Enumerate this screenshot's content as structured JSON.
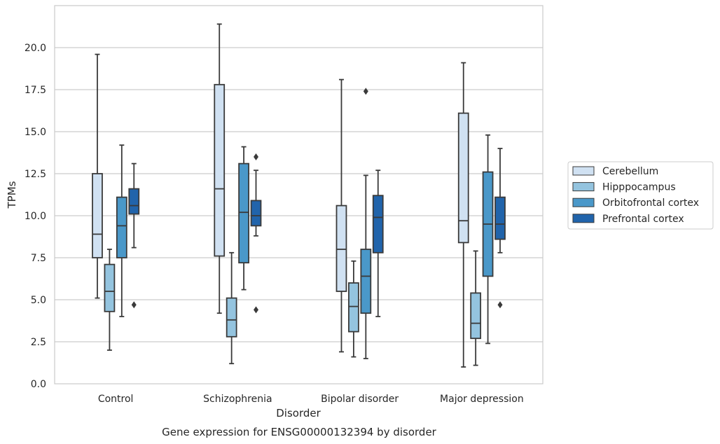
{
  "chart_data": {
    "type": "box",
    "caption": "Gene expression for ENSG00000132394 by disorder",
    "xlabel": "Disorder",
    "ylabel": "TPMs",
    "ylim": [
      0,
      22.5
    ],
    "yticks": [
      "0.0",
      "2.5",
      "5.0",
      "7.5",
      "10.0",
      "12.5",
      "15.0",
      "17.5",
      "20.0"
    ],
    "grid": true,
    "legend_placement": "right-outside",
    "categories": [
      "Control",
      "Schizophrenia",
      "Bipolar disorder",
      "Major depression"
    ],
    "series": [
      {
        "name": "Cerebellum",
        "color": "#d0e1f2",
        "boxes": [
          {
            "whislo": 5.1,
            "q1": 7.5,
            "med": 8.9,
            "q3": 12.5,
            "whishi": 19.6,
            "fliers": []
          },
          {
            "whislo": 4.2,
            "q1": 7.6,
            "med": 11.6,
            "q3": 17.8,
            "whishi": 21.4,
            "fliers": []
          },
          {
            "whislo": 1.9,
            "q1": 5.5,
            "med": 8.0,
            "q3": 10.6,
            "whishi": 18.1,
            "fliers": []
          },
          {
            "whislo": 1.0,
            "q1": 8.4,
            "med": 9.7,
            "q3": 16.1,
            "whishi": 19.1,
            "fliers": []
          }
        ]
      },
      {
        "name": "Hipppocampus",
        "color": "#94c4df",
        "boxes": [
          {
            "whislo": 2.0,
            "q1": 4.3,
            "med": 5.5,
            "q3": 7.1,
            "whishi": 8.0,
            "fliers": []
          },
          {
            "whislo": 1.2,
            "q1": 2.8,
            "med": 3.8,
            "q3": 5.1,
            "whishi": 7.8,
            "fliers": []
          },
          {
            "whislo": 1.6,
            "q1": 3.1,
            "med": 4.6,
            "q3": 6.0,
            "whishi": 7.3,
            "fliers": []
          },
          {
            "whislo": 1.1,
            "q1": 2.7,
            "med": 3.6,
            "q3": 5.4,
            "whishi": 7.9,
            "fliers": []
          }
        ]
      },
      {
        "name": "Orbitofrontal cortex",
        "color": "#4a98c9",
        "boxes": [
          {
            "whislo": 4.0,
            "q1": 7.5,
            "med": 9.4,
            "q3": 11.1,
            "whishi": 14.2,
            "fliers": []
          },
          {
            "whislo": 5.6,
            "q1": 7.2,
            "med": 10.2,
            "q3": 13.1,
            "whishi": 14.1,
            "fliers": []
          },
          {
            "whislo": 1.5,
            "q1": 4.2,
            "med": 6.4,
            "q3": 8.0,
            "whishi": 12.4,
            "fliers": [
              17.4
            ]
          },
          {
            "whislo": 2.4,
            "q1": 6.4,
            "med": 9.5,
            "q3": 12.6,
            "whishi": 14.8,
            "fliers": []
          }
        ]
      },
      {
        "name": "Prefrontal cortex",
        "color": "#2164ab",
        "boxes": [
          {
            "whislo": 8.1,
            "q1": 10.1,
            "med": 10.6,
            "q3": 11.6,
            "whishi": 13.1,
            "fliers": [
              4.7
            ]
          },
          {
            "whislo": 8.8,
            "q1": 9.4,
            "med": 10.0,
            "q3": 10.9,
            "whishi": 12.7,
            "fliers": [
              13.5,
              4.4
            ]
          },
          {
            "whislo": 4.0,
            "q1": 7.8,
            "med": 9.9,
            "q3": 11.2,
            "whishi": 12.7,
            "fliers": []
          },
          {
            "whislo": 7.8,
            "q1": 8.6,
            "med": 9.5,
            "q3": 11.1,
            "whishi": 14.0,
            "fliers": [
              4.7
            ]
          }
        ]
      }
    ]
  }
}
